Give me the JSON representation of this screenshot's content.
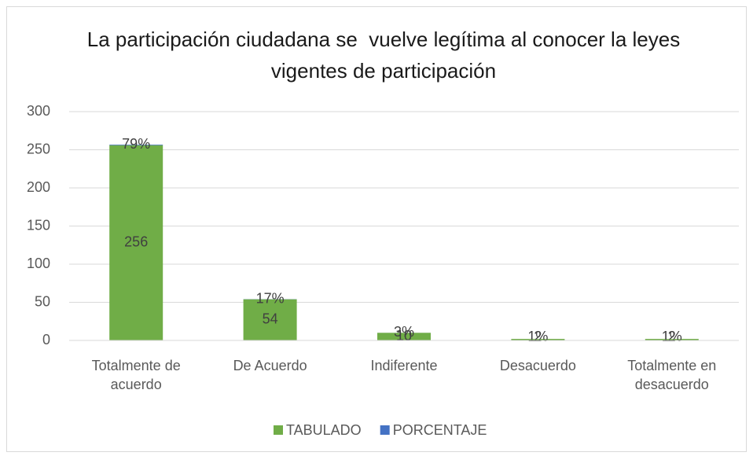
{
  "chart_data": {
    "type": "bar",
    "stacked": true,
    "title": "La participación ciudadana se  vuelve legítima al conocer la leyes vigentes de participación",
    "categories": [
      "Totalmente de acuerdo",
      "De Acuerdo",
      "Indiferente",
      "Desacuerdo",
      "Totalmente en desacuerdo"
    ],
    "series": [
      {
        "name": "TABULADO",
        "color": "#70ad47",
        "values": [
          256,
          54,
          10,
          2,
          2
        ]
      },
      {
        "name": "PORCENTAJE",
        "color": "#4472c4",
        "values": [
          0.79,
          0.17,
          0.03,
          0.01,
          0.01
        ],
        "value_labels": [
          "79%",
          "17%",
          "3%",
          "1%",
          "1%"
        ]
      }
    ],
    "ylim": [
      0,
      300
    ],
    "yticks": [
      0,
      50,
      100,
      150,
      200,
      250,
      300
    ],
    "grid": true,
    "legend": "bottom"
  }
}
